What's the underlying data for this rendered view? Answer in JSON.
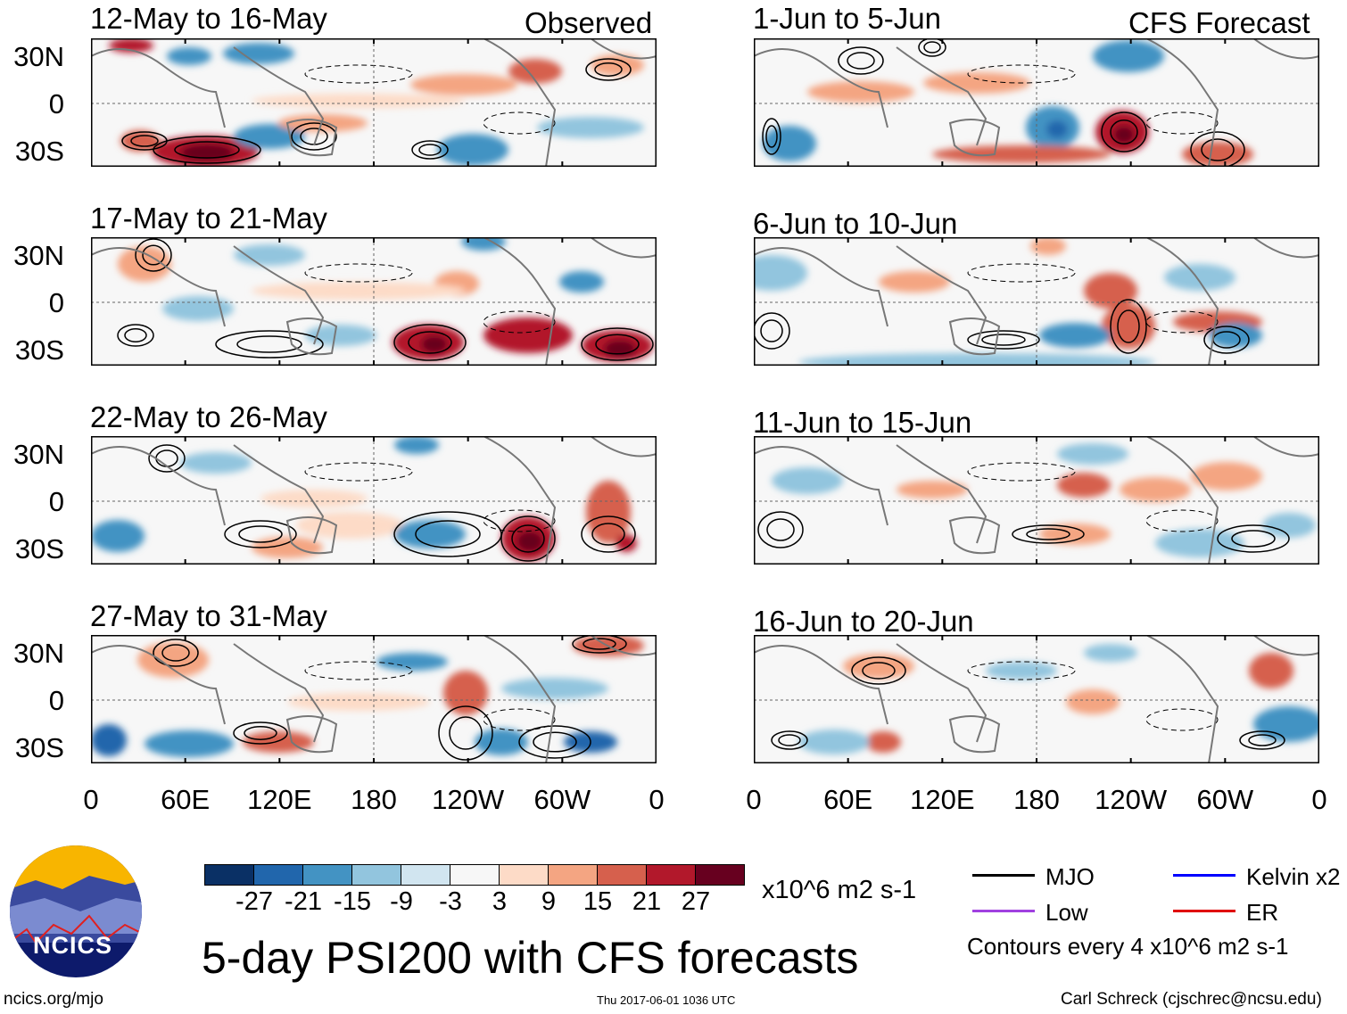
{
  "chart_data": {
    "type": "heatmap",
    "title": "5-day PSI200 with CFS forecasts",
    "units": "x10^6 m2 s-1",
    "columns": [
      {
        "header": "Observed",
        "panels": [
          "12-May to 16-May",
          "17-May to 21-May",
          "22-May to 26-May",
          "27-May to 31-May"
        ]
      },
      {
        "header": "CFS Forecast",
        "panels": [
          "1-Jun to 5-Jun",
          "6-Jun to 10-Jun",
          "11-Jun to 15-Jun",
          "16-Jun to 20-Jun"
        ]
      }
    ],
    "lat_ticks": [
      "30N",
      "0",
      "30S"
    ],
    "lon_ticks": [
      "0",
      "60E",
      "120E",
      "180",
      "120W",
      "60W",
      "0"
    ],
    "colorbar": {
      "labels": [
        "-27",
        "-21",
        "-15",
        "-9",
        "-3",
        "3",
        "9",
        "15",
        "21",
        "27"
      ],
      "colors": [
        "#0a3065",
        "#2166ac",
        "#4393c3",
        "#92c5de",
        "#d1e5f0",
        "#f7f7f7",
        "#fddbc7",
        "#f4a582",
        "#d6604d",
        "#b2182b",
        "#67001f"
      ]
    },
    "legend": [
      {
        "label": "MJO",
        "color": "#000000"
      },
      {
        "label": "Kelvin x2",
        "color": "#0000ff"
      },
      {
        "label": "Low",
        "color": "#a040e0"
      },
      {
        "label": "ER",
        "color": "#e00000"
      }
    ],
    "contour_note": "Contours every 4 x10^6 m2 s-1"
  },
  "footer": {
    "left": "ncics.org/mjo",
    "center": "Thu 2017-06-01 1036 UTC",
    "right": "Carl Schreck (cjschrec@ncsu.edu)"
  },
  "logo": {
    "text": "NCICS"
  }
}
